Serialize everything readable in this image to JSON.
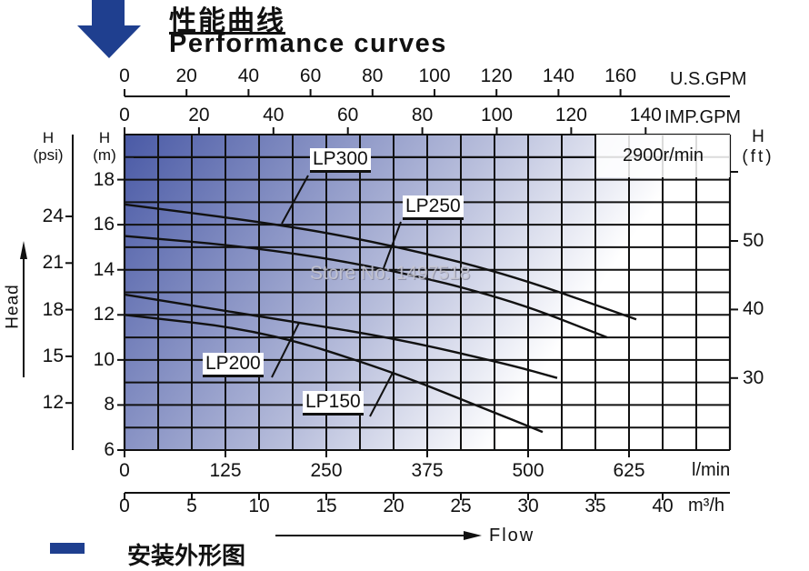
{
  "header": {
    "title_cn": "性能曲线",
    "title_en": "Performance curves",
    "arrow_icon": "down-arrow-icon",
    "arrow_color": "#1f3f8f"
  },
  "footer": {
    "partial_title_cn": "安装外形图"
  },
  "watermark": "Store No: 1497518",
  "chart_data": {
    "type": "line",
    "title": "Performance curves",
    "speed_label": "2900r/min",
    "xlabel": "Flow",
    "ylabel": "Head",
    "x_unit": "l/min",
    "y_unit": "m",
    "xlim": [
      0,
      750
    ],
    "ylim": [
      6,
      20
    ],
    "grid": true,
    "grid_step": {
      "x_lmin": 41.67,
      "y_m": 1
    },
    "background_gradient": [
      "#4a5aa6",
      "#ffffff"
    ],
    "axes": {
      "us_gpm": {
        "label": "U.S.GPM",
        "ticks": [
          "0",
          "20",
          "40",
          "60",
          "80",
          "100",
          "120",
          "140",
          "160"
        ]
      },
      "imp_gpm": {
        "label": "IMP.GPM",
        "ticks": [
          "0",
          "20",
          "40",
          "60",
          "80",
          "100",
          "120",
          "140"
        ]
      },
      "lmin": {
        "label": "l/min",
        "ticks": [
          "0",
          "125",
          "250",
          "375",
          "500",
          "625"
        ]
      },
      "m3h": {
        "label": "m³/h",
        "ticks": [
          "0",
          "5",
          "10",
          "15",
          "20",
          "25",
          "30",
          "35",
          "40"
        ]
      },
      "head_m": {
        "label_top": "H",
        "label_unit": "(m)",
        "ticks": [
          "18",
          "16",
          "14",
          "12",
          "10",
          "8",
          "6"
        ]
      },
      "head_psi": {
        "label_top": "H",
        "label_unit": "(psi)",
        "ticks": [
          "24",
          "21",
          "18",
          "15",
          "12"
        ]
      },
      "head_ft": {
        "label_top": "H",
        "label_unit": "(ft)",
        "ticks": [
          "50",
          "40",
          "30"
        ]
      }
    },
    "series": [
      {
        "name": "LP300",
        "x": [
          0,
          195,
          330,
          476,
          634
        ],
        "y": [
          16.9,
          16.0,
          15.1,
          13.8,
          11.8
        ]
      },
      {
        "name": "LP250",
        "x": [
          0,
          161,
          319,
          476,
          598
        ],
        "y": [
          15.5,
          15.0,
          14.1,
          12.7,
          11.0
        ]
      },
      {
        "name": "LP200",
        "x": [
          0,
          172,
          330,
          476,
          536
        ],
        "y": [
          12.9,
          11.9,
          11.0,
          9.8,
          9.2
        ]
      },
      {
        "name": "LP150",
        "x": [
          0,
          172,
          330,
          442,
          518
        ],
        "y": [
          12.0,
          11.3,
          9.5,
          7.9,
          6.8
        ]
      }
    ]
  }
}
